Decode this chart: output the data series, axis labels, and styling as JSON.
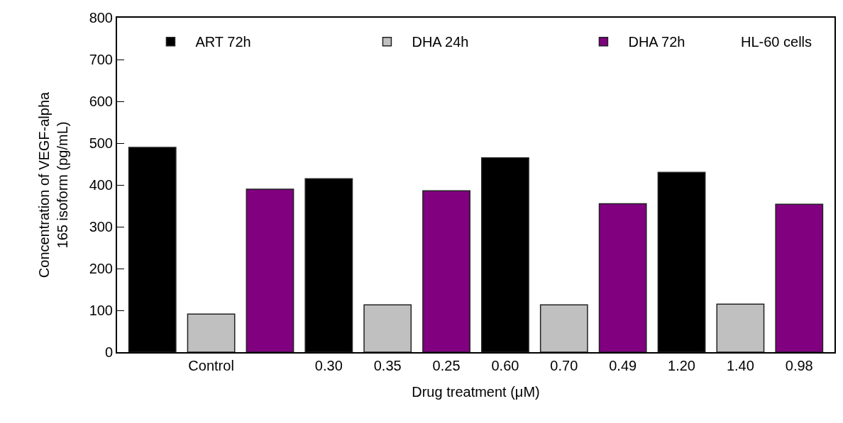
{
  "chart_data": {
    "type": "bar",
    "xlabel": "Drug treatment (μM)",
    "ylabel": "Concentration of VEGF-alpha\n165 isoform (pg/mL)",
    "categories": [
      null,
      "Control",
      null,
      "0.30",
      "0.35",
      "0.25",
      "0.60",
      "0.70",
      "0.49",
      "1.20",
      "1.40",
      "0.98"
    ],
    "series": [
      {
        "name": "ART 72h",
        "color": "#000000",
        "values": [
          490,
          null,
          null,
          415,
          null,
          null,
          465,
          null,
          null,
          430,
          null,
          null
        ]
      },
      {
        "name": "DHA 24h",
        "color": "#c0c0c0",
        "values": [
          null,
          91,
          null,
          null,
          113,
          null,
          null,
          113,
          null,
          null,
          115,
          null
        ]
      },
      {
        "name": "DHA 72h",
        "color": "#800080",
        "values": [
          null,
          null,
          390,
          null,
          null,
          386,
          null,
          null,
          355,
          null,
          null,
          354
        ]
      }
    ],
    "ylim": [
      0,
      800
    ],
    "yticks": [
      0,
      100,
      200,
      300,
      400,
      500,
      600,
      700,
      800
    ],
    "grid": false,
    "legend": "top",
    "annotations": [
      "HL-60 cells"
    ]
  }
}
